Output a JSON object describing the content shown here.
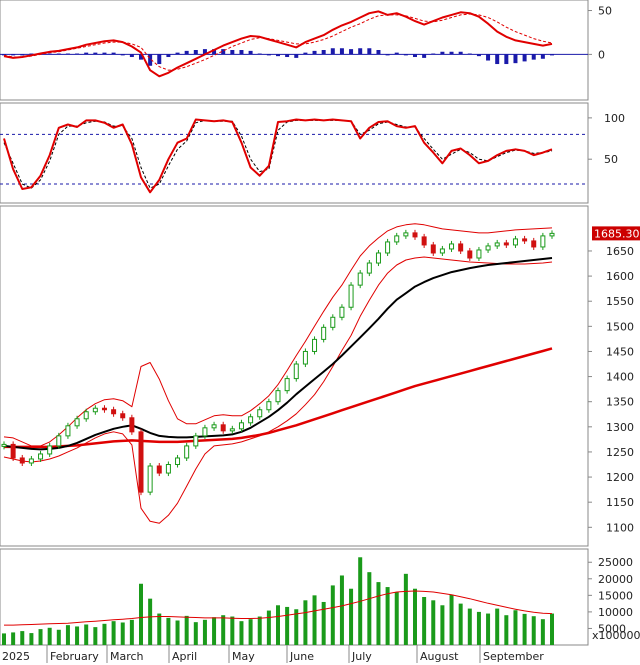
{
  "colors": {
    "up": "#1a9a1a",
    "down": "#d01010",
    "ma_short": "#000000",
    "ma_long": "#e00000",
    "bands": "#e00000",
    "macd_hist": "#1a1aaa",
    "stoch_ref": "#1a1aaa",
    "volume_bar": "#1a9a1a",
    "last_price_bg": "#cc0000",
    "axis": "#888888"
  },
  "x_axis": {
    "months": [
      "2025",
      "February",
      "March",
      "April",
      "May",
      "June",
      "July",
      "August",
      "September"
    ]
  },
  "chart_data": [
    {
      "type": "line",
      "panel": "macd",
      "y_ticks": [
        50,
        0
      ],
      "series": [
        {
          "values": [
            -2,
            -4,
            -3,
            -1,
            1,
            3,
            4,
            6,
            8,
            11,
            13,
            15,
            16,
            14,
            9,
            2,
            -18,
            -25,
            -21,
            -15,
            -10,
            -5,
            0,
            5,
            10,
            14,
            18,
            21,
            20,
            17,
            14,
            11,
            8,
            14,
            18,
            22,
            28,
            33,
            37,
            42,
            47,
            49,
            45,
            47,
            43,
            38,
            34,
            38,
            42,
            45,
            48,
            47,
            43,
            35,
            26,
            20,
            16,
            14,
            12,
            10,
            12
          ]
        },
        {
          "values": [
            -1,
            -3,
            -3,
            -2,
            0,
            2,
            3,
            5,
            7,
            9,
            11,
            13,
            14,
            14,
            12,
            8,
            -5,
            -14,
            -18,
            -17,
            -14,
            -10,
            -6,
            -1,
            4,
            9,
            13,
            17,
            19,
            18,
            16,
            14,
            12,
            12,
            14,
            17,
            21,
            26,
            31,
            35,
            40,
            44,
            45,
            45,
            44,
            41,
            38,
            37,
            39,
            42,
            45,
            46,
            45,
            42,
            37,
            31,
            26,
            22,
            18,
            15,
            13
          ]
        },
        {
          "values": [
            -1,
            -1,
            0,
            1,
            1,
            1,
            1,
            1,
            1,
            2,
            2,
            2,
            2,
            0,
            -3,
            -6,
            -13,
            -11,
            -3,
            2,
            4,
            5,
            6,
            6,
            6,
            5,
            5,
            4,
            1,
            -1,
            -2,
            -3,
            -4,
            2,
            4,
            5,
            7,
            7,
            6,
            7,
            7,
            5,
            0,
            2,
            -1,
            -3,
            -4,
            1,
            3,
            3,
            3,
            1,
            -2,
            -7,
            -11,
            -11,
            -10,
            -8,
            -6,
            -5,
            -1
          ]
        }
      ]
    },
    {
      "type": "line",
      "panel": "stochastic",
      "y_ticks": [
        100,
        50
      ],
      "reference_lines": [
        80,
        20
      ],
      "series": [
        {
          "values": [
            75,
            38,
            14,
            16,
            30,
            55,
            88,
            92,
            89,
            97,
            97,
            94,
            88,
            92,
            68,
            28,
            10,
            25,
            50,
            70,
            75,
            98,
            97,
            96,
            97,
            95,
            70,
            40,
            30,
            42,
            95,
            96,
            98,
            97,
            98,
            97,
            98,
            97,
            96,
            75,
            88,
            95,
            96,
            90,
            88,
            90,
            70,
            58,
            45,
            60,
            63,
            55,
            45,
            48,
            55,
            60,
            62,
            60,
            55,
            58,
            62
          ]
        },
        {
          "values": [
            70,
            45,
            20,
            15,
            25,
            48,
            80,
            90,
            90,
            94,
            96,
            95,
            90,
            90,
            75,
            40,
            15,
            20,
            42,
            62,
            72,
            94,
            97,
            96,
            96,
            96,
            78,
            50,
            35,
            38,
            85,
            95,
            97,
            97,
            97,
            97,
            97,
            97,
            96,
            80,
            85,
            93,
            95,
            92,
            89,
            89,
            75,
            62,
            50,
            56,
            62,
            58,
            50,
            48,
            53,
            58,
            61,
            60,
            57,
            58,
            60
          ]
        }
      ]
    },
    {
      "type": "candlestick",
      "panel": "price",
      "y_ticks": [
        1650,
        1600,
        1550,
        1500,
        1450,
        1400,
        1350,
        1300,
        1250,
        1200,
        1150,
        1100
      ],
      "last_price_label": "1685.300",
      "close": [
        1265,
        1238,
        1228,
        1236,
        1246,
        1262,
        1282,
        1302,
        1316,
        1330,
        1337,
        1334,
        1326,
        1318,
        1290,
        1170,
        1222,
        1208,
        1225,
        1238,
        1262,
        1282,
        1298,
        1304,
        1292,
        1296,
        1308,
        1320,
        1334,
        1350,
        1372,
        1396,
        1425,
        1450,
        1474,
        1498,
        1518,
        1538,
        1582,
        1606,
        1626,
        1646,
        1668,
        1680,
        1686,
        1678,
        1662,
        1646,
        1654,
        1664,
        1650,
        1636,
        1652,
        1660,
        1666,
        1662,
        1674,
        1670,
        1658,
        1680,
        1685
      ],
      "ma_short": [
        1262,
        1260,
        1258,
        1256,
        1255,
        1256,
        1258,
        1262,
        1268,
        1276,
        1284,
        1290,
        1296,
        1300,
        1303,
        1296,
        1288,
        1282,
        1280,
        1279,
        1279,
        1280,
        1281,
        1282,
        1283,
        1285,
        1290,
        1298,
        1309,
        1320,
        1333,
        1348,
        1365,
        1380,
        1395,
        1410,
        1425,
        1442,
        1460,
        1478,
        1496,
        1515,
        1535,
        1553,
        1566,
        1579,
        1588,
        1596,
        1602,
        1608,
        1612,
        1616,
        1619,
        1622,
        1624,
        1626,
        1628,
        1630,
        1632,
        1634,
        1636
      ],
      "ma_long": [
        1260,
        1260,
        1260,
        1260,
        1260,
        1260,
        1261,
        1262,
        1263,
        1265,
        1267,
        1269,
        1271,
        1272,
        1273,
        1272,
        1271,
        1270,
        1270,
        1270,
        1271,
        1272,
        1273,
        1274,
        1275,
        1276,
        1278,
        1281,
        1284,
        1288,
        1293,
        1298,
        1303,
        1309,
        1315,
        1321,
        1327,
        1333,
        1339,
        1345,
        1351,
        1357,
        1363,
        1369,
        1375,
        1381,
        1386,
        1391,
        1396,
        1401,
        1406,
        1411,
        1416,
        1421,
        1426,
        1431,
        1436,
        1441,
        1446,
        1451,
        1456
      ],
      "band_upper": [
        1280,
        1278,
        1270,
        1262,
        1262,
        1270,
        1284,
        1300,
        1318,
        1334,
        1346,
        1354,
        1356,
        1352,
        1340,
        1420,
        1428,
        1395,
        1352,
        1316,
        1306,
        1306,
        1314,
        1322,
        1324,
        1322,
        1322,
        1332,
        1346,
        1362,
        1384,
        1412,
        1442,
        1470,
        1500,
        1530,
        1558,
        1582,
        1612,
        1640,
        1660,
        1676,
        1690,
        1698,
        1702,
        1704,
        1702,
        1698,
        1694,
        1692,
        1690,
        1688,
        1686,
        1686,
        1688,
        1690,
        1692,
        1693,
        1694,
        1695,
        1696
      ],
      "band_lower": [
        1240,
        1236,
        1232,
        1230,
        1232,
        1236,
        1242,
        1250,
        1258,
        1268,
        1278,
        1286,
        1290,
        1286,
        1264,
        1138,
        1112,
        1108,
        1124,
        1148,
        1182,
        1216,
        1246,
        1262,
        1264,
        1266,
        1270,
        1276,
        1282,
        1290,
        1300,
        1312,
        1326,
        1344,
        1364,
        1390,
        1420,
        1452,
        1482,
        1520,
        1552,
        1582,
        1606,
        1622,
        1632,
        1636,
        1638,
        1636,
        1634,
        1632,
        1630,
        1628,
        1627,
        1626,
        1625,
        1624,
        1624,
        1624,
        1625,
        1626,
        1628
      ]
    },
    {
      "type": "bar",
      "panel": "volume",
      "unit_label": "x100000",
      "y_ticks": [
        25000,
        20000,
        15000,
        10000,
        5000
      ],
      "values": [
        3500,
        3800,
        4200,
        3600,
        4800,
        5200,
        4600,
        6000,
        5600,
        6200,
        5400,
        6400,
        7200,
        6800,
        7600,
        18500,
        14000,
        9500,
        8200,
        7400,
        8800,
        6900,
        7600,
        8400,
        9000,
        8600,
        7200,
        7800,
        8600,
        10400,
        12000,
        11500,
        10800,
        13500,
        15000,
        13000,
        18000,
        21000,
        17000,
        26500,
        22000,
        19000,
        17500,
        16000,
        21500,
        17000,
        14500,
        13500,
        12000,
        15200,
        12500,
        11000,
        10000,
        9500,
        11000,
        9000,
        10500,
        9400,
        8700,
        7800,
        9500
      ],
      "average": [
        6000,
        6000,
        6100,
        6200,
        6300,
        6400,
        6500,
        6600,
        6800,
        7000,
        7200,
        7400,
        7600,
        7800,
        8000,
        8300,
        8500,
        8600,
        8600,
        8500,
        8400,
        8300,
        8200,
        8200,
        8200,
        8100,
        8000,
        8000,
        8100,
        8300,
        8600,
        9000,
        9400,
        9800,
        10300,
        10800,
        11300,
        11800,
        12500,
        13200,
        14000,
        14800,
        15500,
        16000,
        16200,
        16300,
        16200,
        16000,
        15600,
        15200,
        14600,
        14000,
        13300,
        12600,
        12000,
        11400,
        10800,
        10300,
        9900,
        9600,
        9500
      ]
    }
  ]
}
